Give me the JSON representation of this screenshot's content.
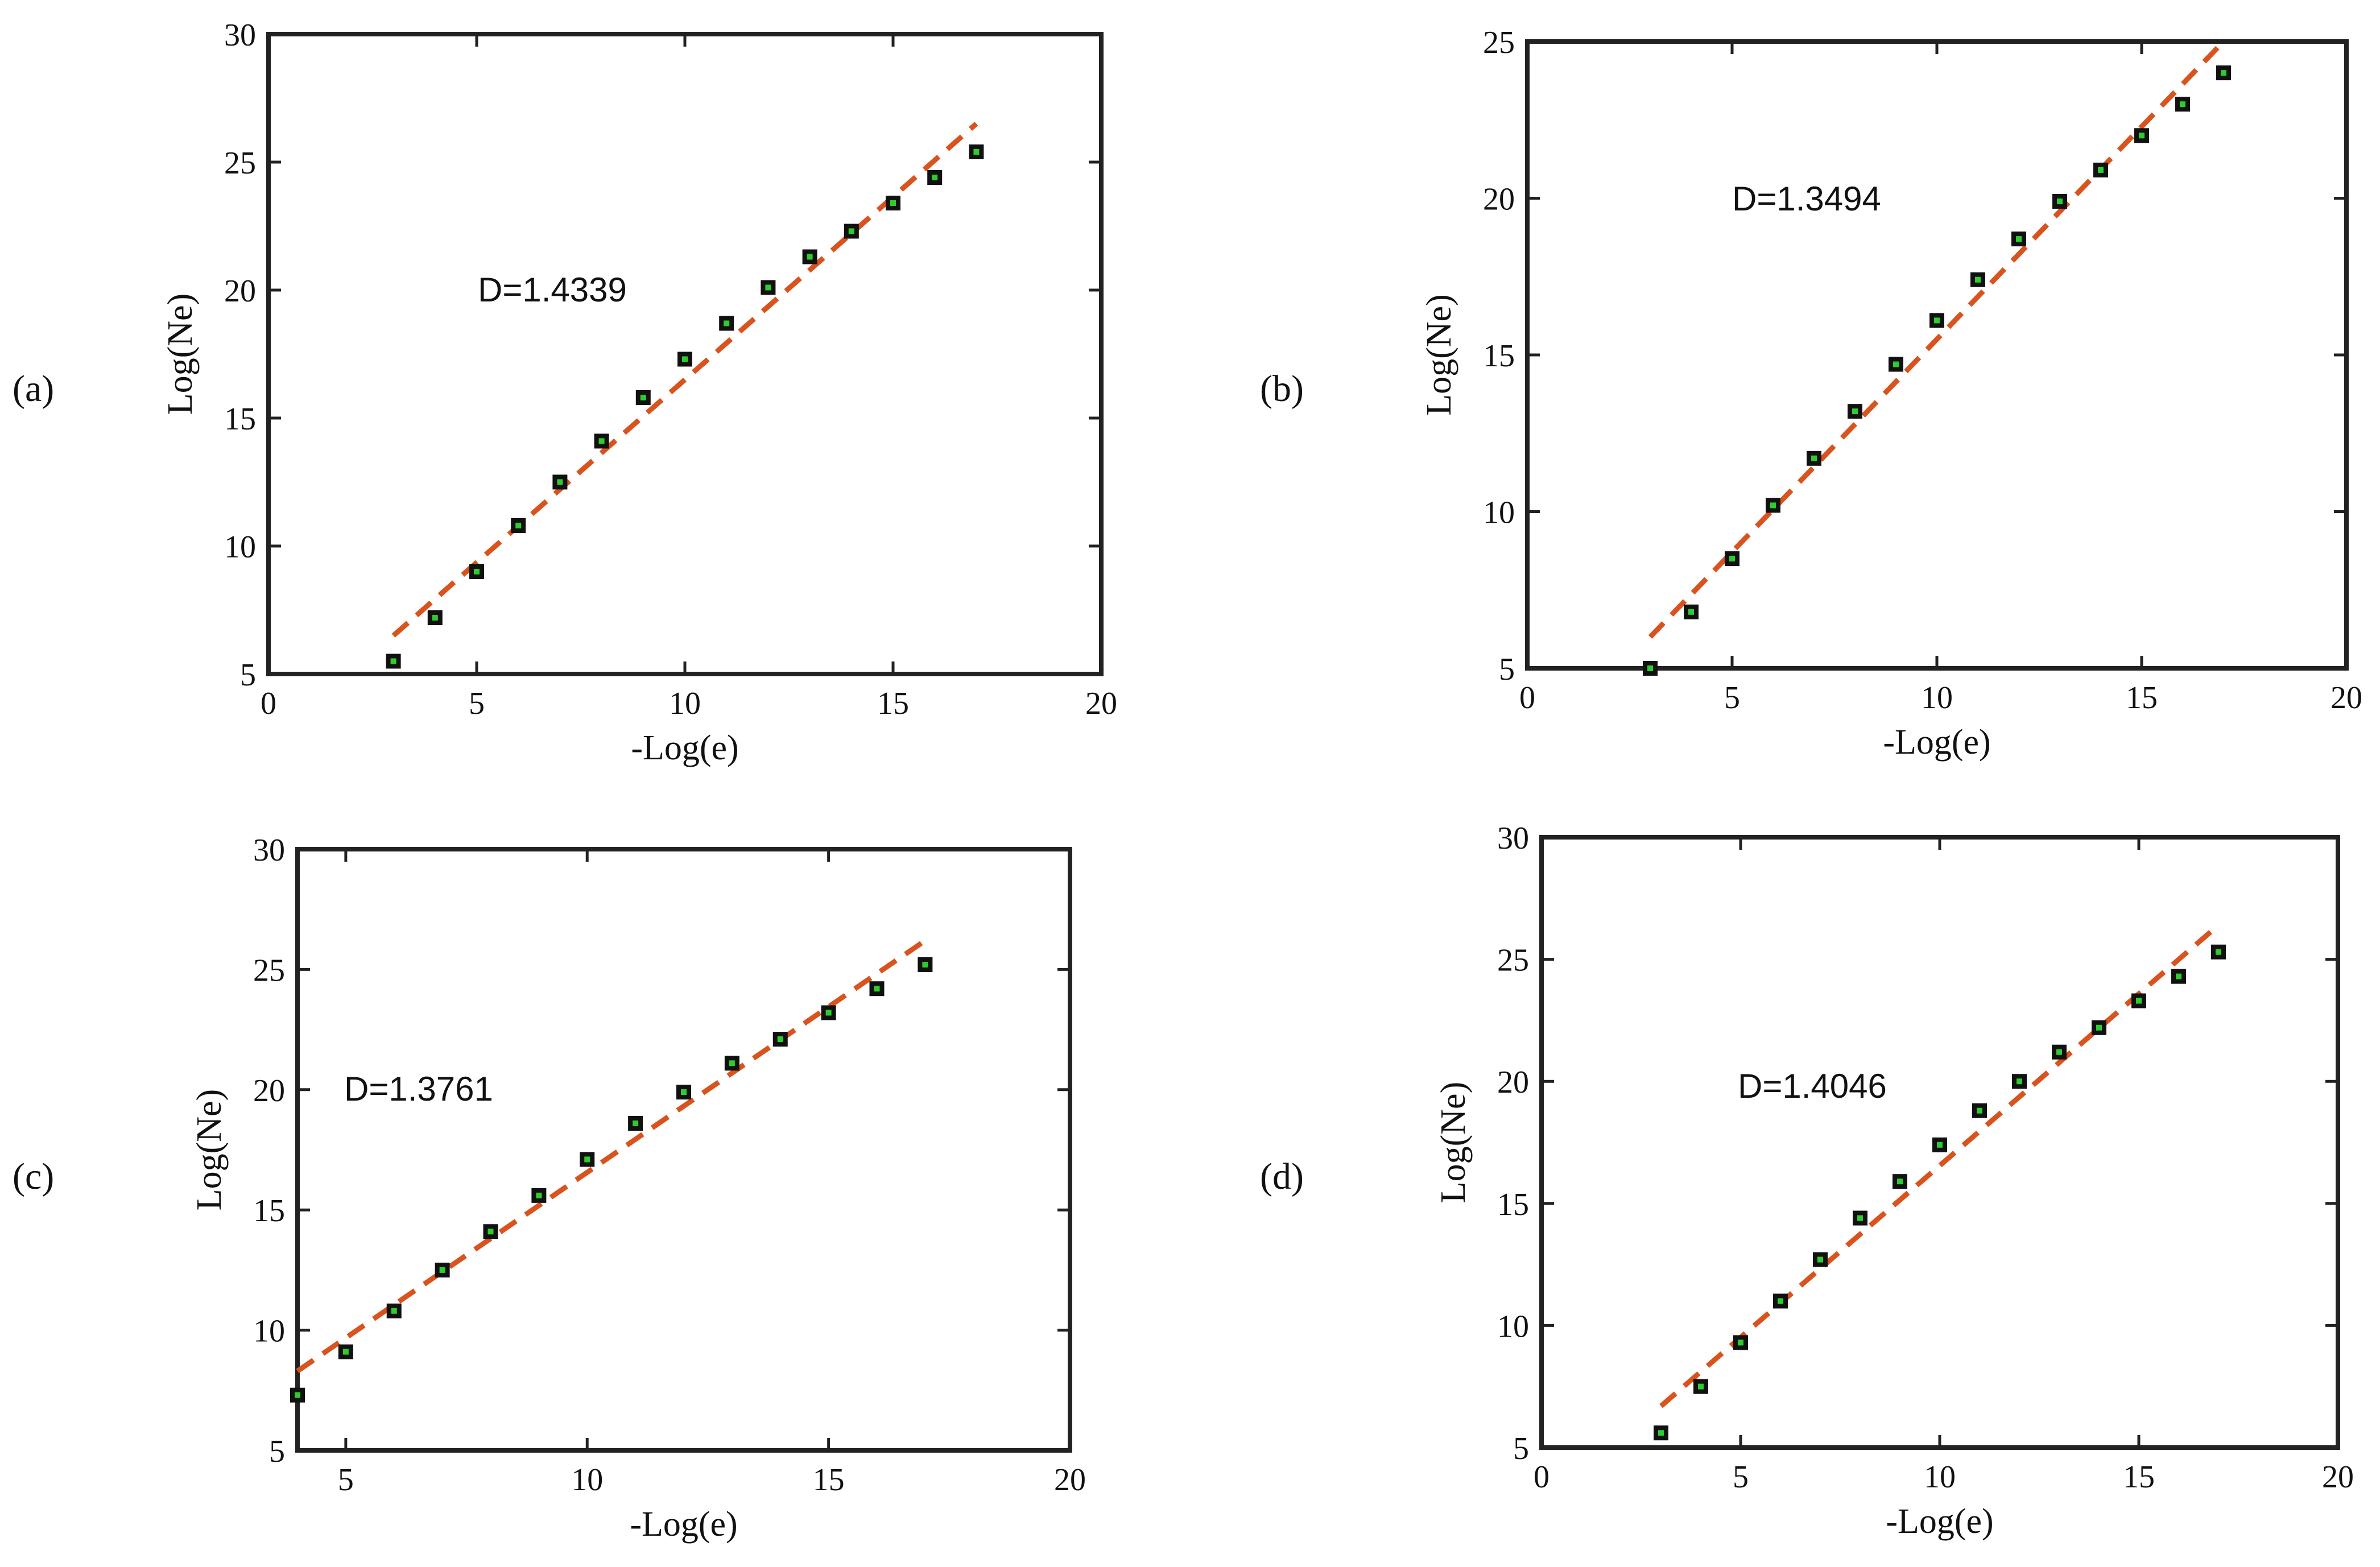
{
  "style": {
    "fit_line_color": "#d9531e",
    "marker_edge_color": "#111111",
    "marker_fill_color": "#2ecc2e"
  },
  "chart_data": [
    {
      "panel": "(a)",
      "type": "scatter",
      "xlabel": "-Log(e)",
      "ylabel": "Log(Ne)",
      "xlim": [
        0,
        20
      ],
      "ylim": [
        5,
        30
      ],
      "xticks": [
        "0",
        "5",
        "10",
        "15",
        "20"
      ],
      "yticks": [
        "5",
        "10",
        "15",
        "20",
        "25",
        "30"
      ],
      "annotation": "D=1.4339",
      "points": {
        "x": [
          3,
          4,
          5,
          6,
          7,
          8,
          9,
          10,
          11,
          12,
          13,
          14,
          15,
          16,
          17
        ],
        "y": [
          5.5,
          7.2,
          9.0,
          10.8,
          12.5,
          14.1,
          15.8,
          17.3,
          18.7,
          20.1,
          21.3,
          22.3,
          23.4,
          24.4,
          25.4
        ]
      },
      "fit_line": {
        "x": [
          3,
          17
        ],
        "y": [
          6.5,
          26.5
        ]
      }
    },
    {
      "panel": "(b)",
      "type": "scatter",
      "xlabel": "-Log(e)",
      "ylabel": "Log(Ne)",
      "xlim": [
        0,
        20
      ],
      "ylim": [
        5,
        25
      ],
      "xticks": [
        "0",
        "5",
        "10",
        "15",
        "20"
      ],
      "yticks": [
        "5",
        "10",
        "15",
        "20",
        "25"
      ],
      "annotation": "D=1.3494",
      "points": {
        "x": [
          3,
          4,
          5,
          6,
          7,
          8,
          9,
          10,
          11,
          12,
          13,
          14,
          15,
          16,
          17
        ],
        "y": [
          5.0,
          6.8,
          8.5,
          10.2,
          11.7,
          13.2,
          14.7,
          16.1,
          17.4,
          18.7,
          19.9,
          20.9,
          22.0,
          23.0,
          24.0
        ]
      },
      "fit_line": {
        "x": [
          3,
          17
        ],
        "y": [
          6.0,
          25.0
        ]
      }
    },
    {
      "panel": "(c)",
      "type": "scatter",
      "xlabel": "-Log(e)",
      "ylabel": "Log(Ne)",
      "xlim": [
        4,
        20
      ],
      "ylim": [
        5,
        30
      ],
      "xticks": [
        "5",
        "10",
        "15",
        "20"
      ],
      "xtick_values": [
        5,
        10,
        15,
        20
      ],
      "yticks": [
        "5",
        "10",
        "15",
        "20",
        "25",
        "30"
      ],
      "annotation": "D=1.3761",
      "points": {
        "x": [
          4,
          5,
          6,
          7,
          8,
          9,
          10,
          11,
          12,
          13,
          14,
          15,
          16,
          17
        ],
        "y": [
          7.3,
          9.1,
          10.8,
          12.5,
          14.1,
          15.6,
          17.1,
          18.6,
          19.9,
          21.1,
          22.1,
          23.2,
          24.2,
          25.2
        ]
      },
      "fit_line": {
        "x": [
          4,
          17
        ],
        "y": [
          8.3,
          26.2
        ]
      }
    },
    {
      "panel": "(d)",
      "type": "scatter",
      "xlabel": "-Log(e)",
      "ylabel": "Log(Ne)",
      "xlim": [
        0,
        20
      ],
      "ylim": [
        5,
        30
      ],
      "xticks": [
        "0",
        "5",
        "10",
        "15",
        "20"
      ],
      "yticks": [
        "5",
        "10",
        "15",
        "20",
        "25",
        "30"
      ],
      "annotation": "D=1.4046",
      "points": {
        "x": [
          3,
          4,
          5,
          6,
          7,
          8,
          9,
          10,
          11,
          12,
          13,
          14,
          15,
          16,
          17
        ],
        "y": [
          5.6,
          7.5,
          9.3,
          11.0,
          12.7,
          14.4,
          15.9,
          17.4,
          18.8,
          20.0,
          21.2,
          22.2,
          23.3,
          24.3,
          25.3
        ]
      },
      "fit_line": {
        "x": [
          3,
          17
        ],
        "y": [
          6.7,
          26.4
        ]
      }
    }
  ]
}
